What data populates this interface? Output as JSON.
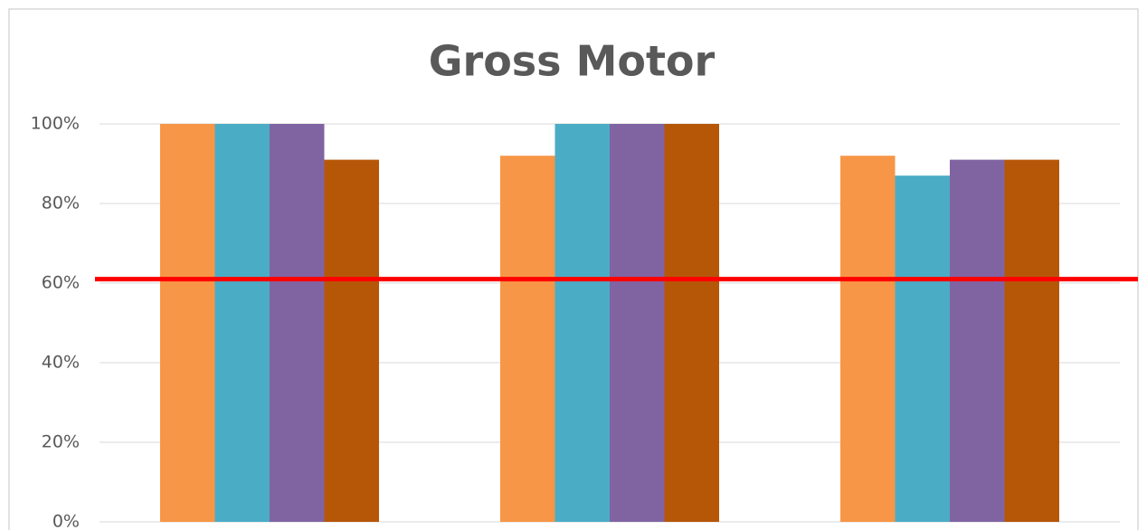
{
  "chart_data": {
    "type": "bar",
    "title": "Gross Motor",
    "categories": [
      null,
      null,
      null
    ],
    "series": [
      {
        "color": "#f79646",
        "values": [
          100,
          92,
          92
        ]
      },
      {
        "color": "#4bacc6",
        "values": [
          100,
          100,
          87
        ]
      },
      {
        "color": "#8064a2",
        "values": [
          100,
          100,
          91
        ]
      },
      {
        "color": "#b65708",
        "values": [
          91,
          100,
          91
        ]
      }
    ],
    "reference_line": {
      "value": 61,
      "color": "#ff0000"
    },
    "ylim": [
      0,
      100
    ],
    "yticks": [
      {
        "value": 0,
        "label": "0%"
      },
      {
        "value": 20,
        "label": "20%"
      },
      {
        "value": 40,
        "label": "40%"
      },
      {
        "value": 60,
        "label": "60%"
      },
      {
        "value": 80,
        "label": "80%"
      },
      {
        "value": 100,
        "label": "100%"
      }
    ],
    "grid": true
  }
}
